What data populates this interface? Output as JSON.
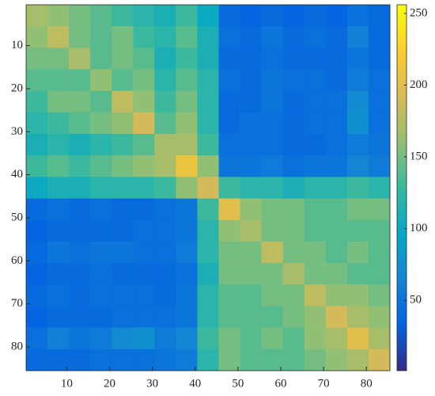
{
  "chart_data": {
    "type": "heatmap",
    "colormap": "parula",
    "xbins": [
      0.5,
      5.5,
      10.5,
      15.5,
      20.5,
      25.5,
      30.5,
      35.5,
      40.5,
      45.5,
      50.5,
      55.5,
      60.5,
      65.5,
      70.5,
      75.5,
      80.5,
      85.5
    ],
    "ybins": [
      0.5,
      5.5,
      10.5,
      15.5,
      20.5,
      25.5,
      30.5,
      35.5,
      40.5,
      45.5,
      50.5,
      55.5,
      60.5,
      65.5,
      70.5,
      75.5,
      80.5,
      85.5
    ],
    "xlim": [
      0.5,
      85.5
    ],
    "ylim": [
      85.5,
      0.5
    ],
    "xticks": [
      10,
      20,
      30,
      40,
      50,
      60,
      70,
      80
    ],
    "yticks": [
      10,
      20,
      30,
      40,
      50,
      60,
      70,
      80
    ],
    "clim": [
      1,
      256
    ],
    "cticks": [
      50,
      100,
      150,
      200,
      250
    ],
    "values": [
      [
        170,
        160,
        150,
        140,
        130,
        120,
        110,
        130,
        100,
        40,
        35,
        40,
        35,
        40,
        35,
        45,
        40
      ],
      [
        160,
        180,
        150,
        140,
        150,
        130,
        120,
        140,
        110,
        45,
        40,
        50,
        40,
        45,
        40,
        60,
        40
      ],
      [
        150,
        150,
        170,
        140,
        150,
        140,
        110,
        130,
        110,
        40,
        40,
        45,
        40,
        40,
        40,
        50,
        40
      ],
      [
        140,
        140,
        140,
        160,
        140,
        150,
        120,
        140,
        120,
        45,
        40,
        50,
        45,
        45,
        40,
        55,
        45
      ],
      [
        130,
        150,
        150,
        140,
        180,
        160,
        130,
        150,
        120,
        40,
        40,
        50,
        40,
        45,
        45,
        70,
        45
      ],
      [
        120,
        130,
        140,
        150,
        160,
        190,
        140,
        160,
        120,
        40,
        45,
        45,
        40,
        45,
        45,
        75,
        45
      ],
      [
        110,
        120,
        110,
        120,
        130,
        140,
        170,
        170,
        130,
        45,
        45,
        45,
        40,
        40,
        45,
        55,
        50
      ],
      [
        130,
        140,
        130,
        140,
        150,
        160,
        170,
        210,
        160,
        50,
        50,
        55,
        45,
        50,
        50,
        65,
        55
      ],
      [
        100,
        110,
        110,
        120,
        120,
        120,
        130,
        160,
        190,
        130,
        120,
        120,
        110,
        120,
        120,
        130,
        120
      ],
      [
        40,
        45,
        40,
        45,
        40,
        40,
        45,
        50,
        130,
        200,
        160,
        150,
        150,
        140,
        140,
        150,
        150
      ],
      [
        35,
        40,
        40,
        40,
        40,
        45,
        45,
        50,
        120,
        160,
        170,
        150,
        150,
        140,
        140,
        140,
        140
      ],
      [
        40,
        50,
        45,
        50,
        50,
        45,
        45,
        55,
        120,
        150,
        150,
        180,
        150,
        150,
        140,
        150,
        140
      ],
      [
        35,
        40,
        40,
        45,
        40,
        40,
        40,
        45,
        110,
        150,
        150,
        150,
        170,
        150,
        150,
        140,
        140
      ],
      [
        40,
        45,
        40,
        45,
        45,
        45,
        40,
        50,
        120,
        140,
        140,
        150,
        150,
        180,
        160,
        160,
        150
      ],
      [
        35,
        40,
        40,
        40,
        45,
        45,
        45,
        50,
        120,
        140,
        140,
        140,
        150,
        160,
        190,
        170,
        160
      ],
      [
        45,
        60,
        50,
        55,
        70,
        75,
        55,
        65,
        130,
        150,
        140,
        150,
        140,
        160,
        170,
        200,
        170
      ],
      [
        40,
        40,
        40,
        45,
        45,
        45,
        50,
        55,
        120,
        150,
        140,
        140,
        140,
        150,
        160,
        170,
        190
      ]
    ]
  }
}
